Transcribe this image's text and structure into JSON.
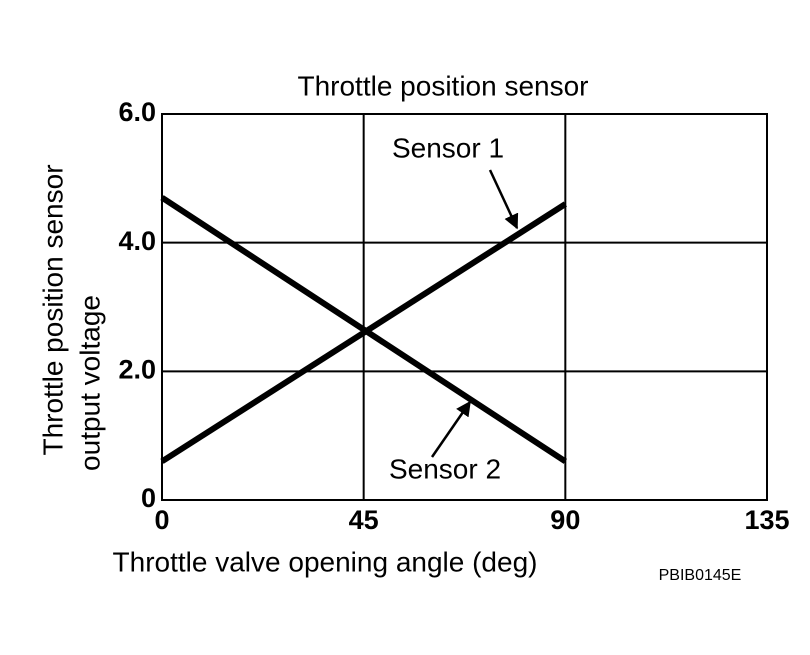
{
  "chart_data": {
    "type": "line",
    "title": "Throttle position sensor",
    "xlabel": "Throttle valve opening angle (deg)",
    "ylabel": [
      "Throttle position sensor",
      "output voltage"
    ],
    "x": [
      0,
      90
    ],
    "series": [
      {
        "name": "Sensor 1",
        "color": "#000000",
        "values": [
          0.6,
          4.6
        ]
      },
      {
        "name": "Sensor 2",
        "color": "#000000",
        "values": [
          4.7,
          0.6
        ]
      }
    ],
    "xlim": [
      0,
      135
    ],
    "xticks": [
      0,
      45,
      90,
      135
    ],
    "ylim": [
      0,
      6
    ],
    "yticks": [
      0,
      {
        "value": 2,
        "label": "2.0"
      },
      {
        "value": 4,
        "label": "4.0"
      },
      {
        "value": 6,
        "label": "6.0"
      }
    ],
    "grid": true,
    "footnote": "PBIB0145E"
  }
}
